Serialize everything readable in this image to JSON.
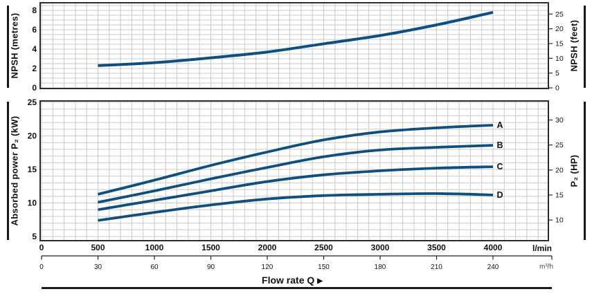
{
  "chart_data": [
    {
      "type": "line",
      "id": "npsh-chart",
      "ylabel_left": "NPSH (metres)",
      "ylabel_right": "NPSH (feet)",
      "x_lmin": [
        500,
        1000,
        1500,
        2000,
        2500,
        3000,
        3500,
        4000
      ],
      "series": [
        {
          "name": "NPSH",
          "values_metres": [
            2.3,
            2.6,
            3.1,
            3.7,
            4.55,
            5.4,
            6.5,
            7.8
          ]
        }
      ],
      "yticks_left_metres": [
        0,
        2,
        4,
        6,
        8
      ],
      "yticks_right_feet": [
        0,
        5,
        10,
        15,
        20,
        25
      ],
      "ylim_metres": [
        0,
        8.8
      ],
      "grid": "on",
      "legend": "none"
    },
    {
      "type": "line",
      "id": "power-chart",
      "ylabel_left": "Absorbed power P₂ (kW)",
      "ylabel_right": "P₂ (HP)",
      "x_lmin": [
        500,
        1000,
        1500,
        2000,
        2500,
        3000,
        3500,
        4000
      ],
      "series": [
        {
          "name": "A",
          "values_kw": [
            11.3,
            13.4,
            15.6,
            17.6,
            19.4,
            20.6,
            21.2,
            21.6
          ]
        },
        {
          "name": "B",
          "values_kw": [
            10.1,
            11.8,
            13.6,
            15.3,
            16.9,
            17.9,
            18.3,
            18.6
          ]
        },
        {
          "name": "C",
          "values_kw": [
            9.0,
            10.4,
            11.8,
            13.2,
            14.2,
            14.8,
            15.2,
            15.4
          ]
        },
        {
          "name": "D",
          "values_kw": [
            7.4,
            8.6,
            9.7,
            10.6,
            11.1,
            11.3,
            11.4,
            11.2
          ]
        }
      ],
      "yticks_left_kw": [
        5,
        10,
        15,
        20,
        25
      ],
      "yticks_right_hp": [
        10,
        15,
        20,
        25,
        30
      ],
      "ylim_kw": [
        4.4,
        25.4
      ],
      "grid": "on",
      "legend": "curve-end-labels"
    }
  ],
  "x_axis": {
    "xlabel": "Flow rate Q",
    "xlabel_arrow": "▶",
    "lmin_ticks": [
      0,
      500,
      1000,
      1500,
      2000,
      2500,
      3000,
      3500,
      4000
    ],
    "lmin_unit": "l/min",
    "m3h_ticks": [
      0,
      30,
      60,
      90,
      120,
      150,
      180,
      210,
      240
    ],
    "m3h_unit": "m³/h",
    "xlim_lmin": [
      0,
      4500
    ]
  },
  "colors": {
    "curve": "#0e4f80",
    "grid": "#c9c9c9",
    "border": "#2b2b2b",
    "text": "#111111",
    "muted": "#4a4a4a"
  }
}
